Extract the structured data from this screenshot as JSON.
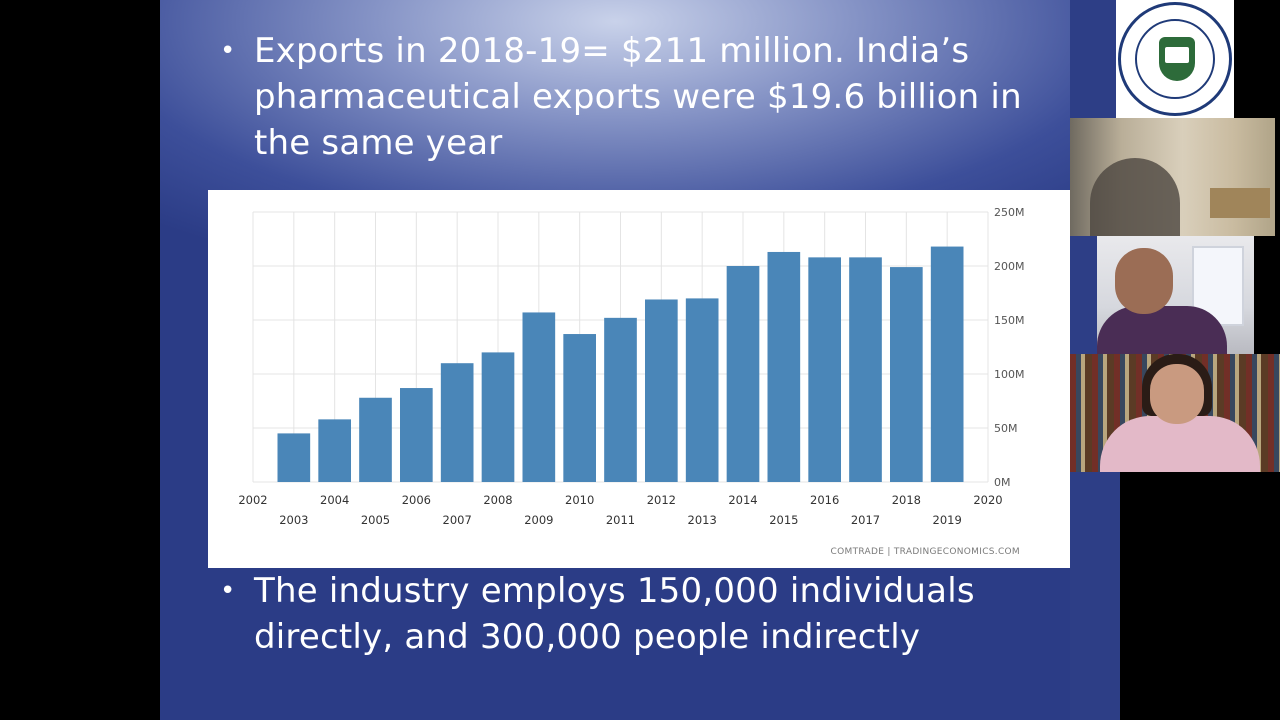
{
  "slide": {
    "bullet1": "Exports in 2018-19= $211 million. India’s pharmaceutical exports were $19.6 billion in the same year",
    "bullet2": "The industry employs 150,000 individuals directly, and 300,000 people indirectly",
    "bullet_glyph": "•"
  },
  "chart_data": {
    "type": "bar",
    "title": "",
    "source": "COMTRADE | TRADINGECONOMICS.COM",
    "categories": [
      "2003",
      "2004",
      "2005",
      "2006",
      "2007",
      "2008",
      "2009",
      "2010",
      "2011",
      "2012",
      "2013",
      "2014",
      "2015",
      "2016",
      "2017",
      "2018",
      "2019"
    ],
    "values": [
      45,
      58,
      78,
      87,
      110,
      120,
      157,
      137,
      152,
      169,
      170,
      200,
      213,
      208,
      208,
      199,
      218
    ],
    "unit": "M",
    "ylim": [
      0,
      250
    ],
    "y_ticks": [
      "0M",
      "50M",
      "100M",
      "150M",
      "200M",
      "250M"
    ],
    "x_ticks_top": [
      "2002",
      "2004",
      "2006",
      "2008",
      "2010",
      "2012",
      "2014",
      "2016",
      "2018",
      "2020"
    ],
    "x_ticks_bottom": [
      "2003",
      "2005",
      "2007",
      "2009",
      "2011",
      "2013",
      "2015",
      "2017",
      "2019"
    ],
    "bar_color": "#4a86b8",
    "grid": true
  },
  "participants": {
    "logo_icon": "institute-seal-icon",
    "tiles": [
      "camera-feed-1",
      "camera-feed-2",
      "camera-feed-3"
    ]
  }
}
